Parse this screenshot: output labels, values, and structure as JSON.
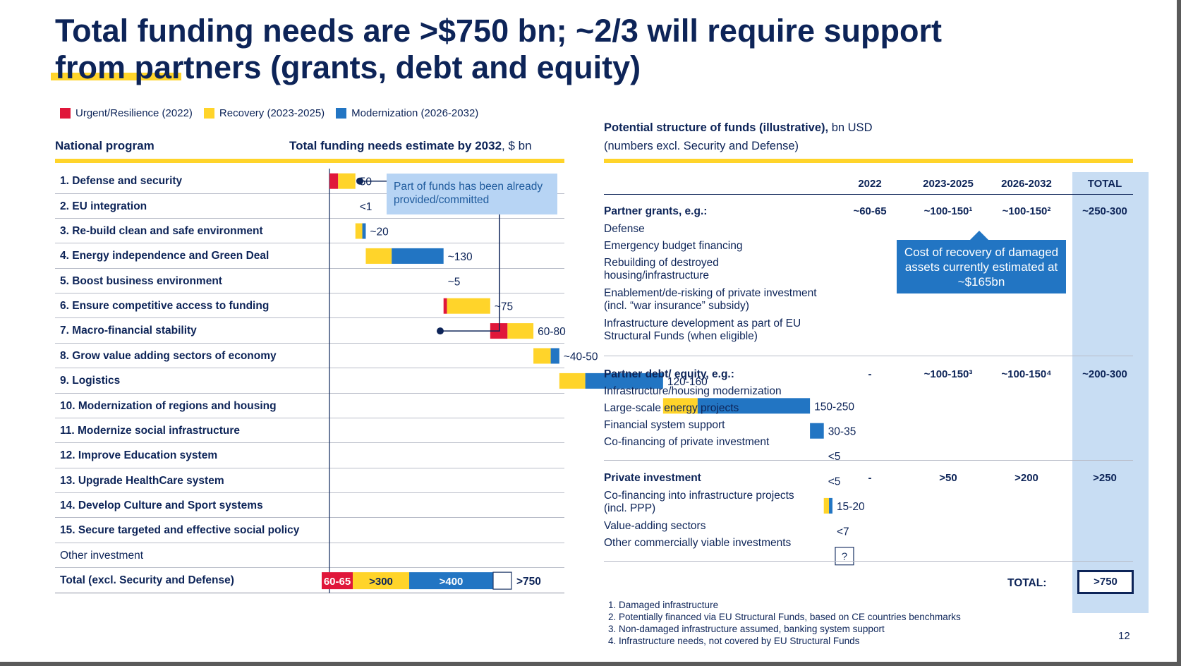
{
  "title": {
    "line1": "Total funding needs are >$750 bn; ~2/3 will require support",
    "line2": "from partners (grants, debt and equity)"
  },
  "legend": [
    {
      "label": "Urgent/Resilience (2022)",
      "color": "#e0173a"
    },
    {
      "label": "Recovery (2023-2025)",
      "color": "#ffd42a"
    },
    {
      "label": "Modernization (2026-2032)",
      "color": "#2275c3"
    }
  ],
  "left": {
    "col_program": "National program",
    "col_estimate_bold": "Total funding needs estimate by 2032",
    "col_estimate_unit": ", $ bn",
    "callout_text": "Part of funds has been already provided/committed"
  },
  "chart_data": {
    "type": "bar",
    "subtype": "horizontal-waterfall",
    "title": "Total funding needs estimate by 2032, $ bn",
    "categories": [
      "1. Defense and security",
      "2. EU integration",
      "3. Re-build clean and safe environment",
      "4. Energy independence and Green Deal",
      "5. Boost business environment",
      "6. Ensure competitive access to funding",
      "7. Macro-financial stability",
      "8. Grow value adding sectors of economy",
      "9. Logistics",
      "10. Modernization of regions and housing",
      "11. Modernize social infrastructure",
      "12. Improve Education system",
      "13. Upgrade HealthCare system",
      "14. Develop Culture and Sport systems",
      "15. Secure targeted and effective social policy",
      "Other investment",
      "Total (excl. Security and Defense)"
    ],
    "value_labels": [
      "50",
      "<1",
      "~20",
      "~130",
      "~5",
      "~75",
      "60-80",
      "~40-50",
      "120-160",
      "150-250",
      "30-35",
      "<5",
      "<5",
      "15-20",
      "<7",
      "?",
      ">750"
    ],
    "series": [
      {
        "name": "Urgent/Resilience (2022)",
        "values": [
          5,
          0,
          0,
          0,
          0,
          2,
          10,
          0,
          0,
          0,
          0,
          0,
          0,
          0,
          0,
          0,
          60
        ]
      },
      {
        "name": "Recovery (2023-2025)",
        "values": [
          10,
          0,
          4,
          15,
          0,
          25,
          15,
          10,
          15,
          20,
          0,
          0,
          0,
          3,
          0,
          0,
          300
        ]
      },
      {
        "name": "Modernization (2026-2032)",
        "values": [
          0,
          0,
          2,
          30,
          0,
          0,
          0,
          5,
          45,
          65,
          8,
          0,
          0,
          2,
          0,
          0,
          400
        ]
      }
    ],
    "totals_segment_labels": [
      "60-65",
      ">300",
      ">400"
    ],
    "unknown_box_categories": [
      "Other investment"
    ],
    "xlabel": "$ bn",
    "ylabel": "National program"
  },
  "right": {
    "header_bold": "Potential structure of funds (illustrative),",
    "header_unit": " bn USD",
    "header_line2": "(numbers excl. Security and Defense)",
    "columns": [
      "2022",
      "2023-2025",
      "2026-2032",
      "TOTAL"
    ],
    "sections": [
      {
        "title": "Partner grants, e.g.:",
        "values": [
          "~60-65",
          "~100-150¹",
          "~100-150²",
          "~250-300"
        ],
        "items": [
          "Defense",
          "Emergency budget financing",
          "Rebuilding of destroyed housing/infrastructure",
          "Enablement/de-risking of private investment (incl. “war insurance” subsidy)",
          "Infrastructure development as part of EU Structural Funds (when eligible)"
        ]
      },
      {
        "title": "Partner debt/ equity, e.g.:",
        "values": [
          "-",
          "~100-150³",
          "~100-150⁴",
          "~200-300"
        ],
        "items": [
          "Infrastructure/housing modernization",
          "Large-scale energy projects",
          "Financial system support",
          "Co-financing of private investment"
        ]
      },
      {
        "title": "Private investment",
        "values": [
          "-",
          ">50",
          ">200",
          ">250"
        ],
        "items": [
          "Co-financing into infrastructure projects (incl. PPP)",
          "Value-adding sectors",
          "Other commercially viable investments"
        ]
      }
    ],
    "bubble_text": "Cost of recovery of damaged assets currently estimated at ~$165bn",
    "grand_total_label": "TOTAL:",
    "grand_total_value": ">750",
    "footnotes": [
      "1. Damaged infrastructure",
      "2. Potentially financed via EU Structural Funds, based on CE countries benchmarks",
      "3. Non-damaged infrastructure assumed, banking system support",
      "4. Infrastructure needs, not covered by EU Structural Funds"
    ]
  },
  "page_number": "12"
}
